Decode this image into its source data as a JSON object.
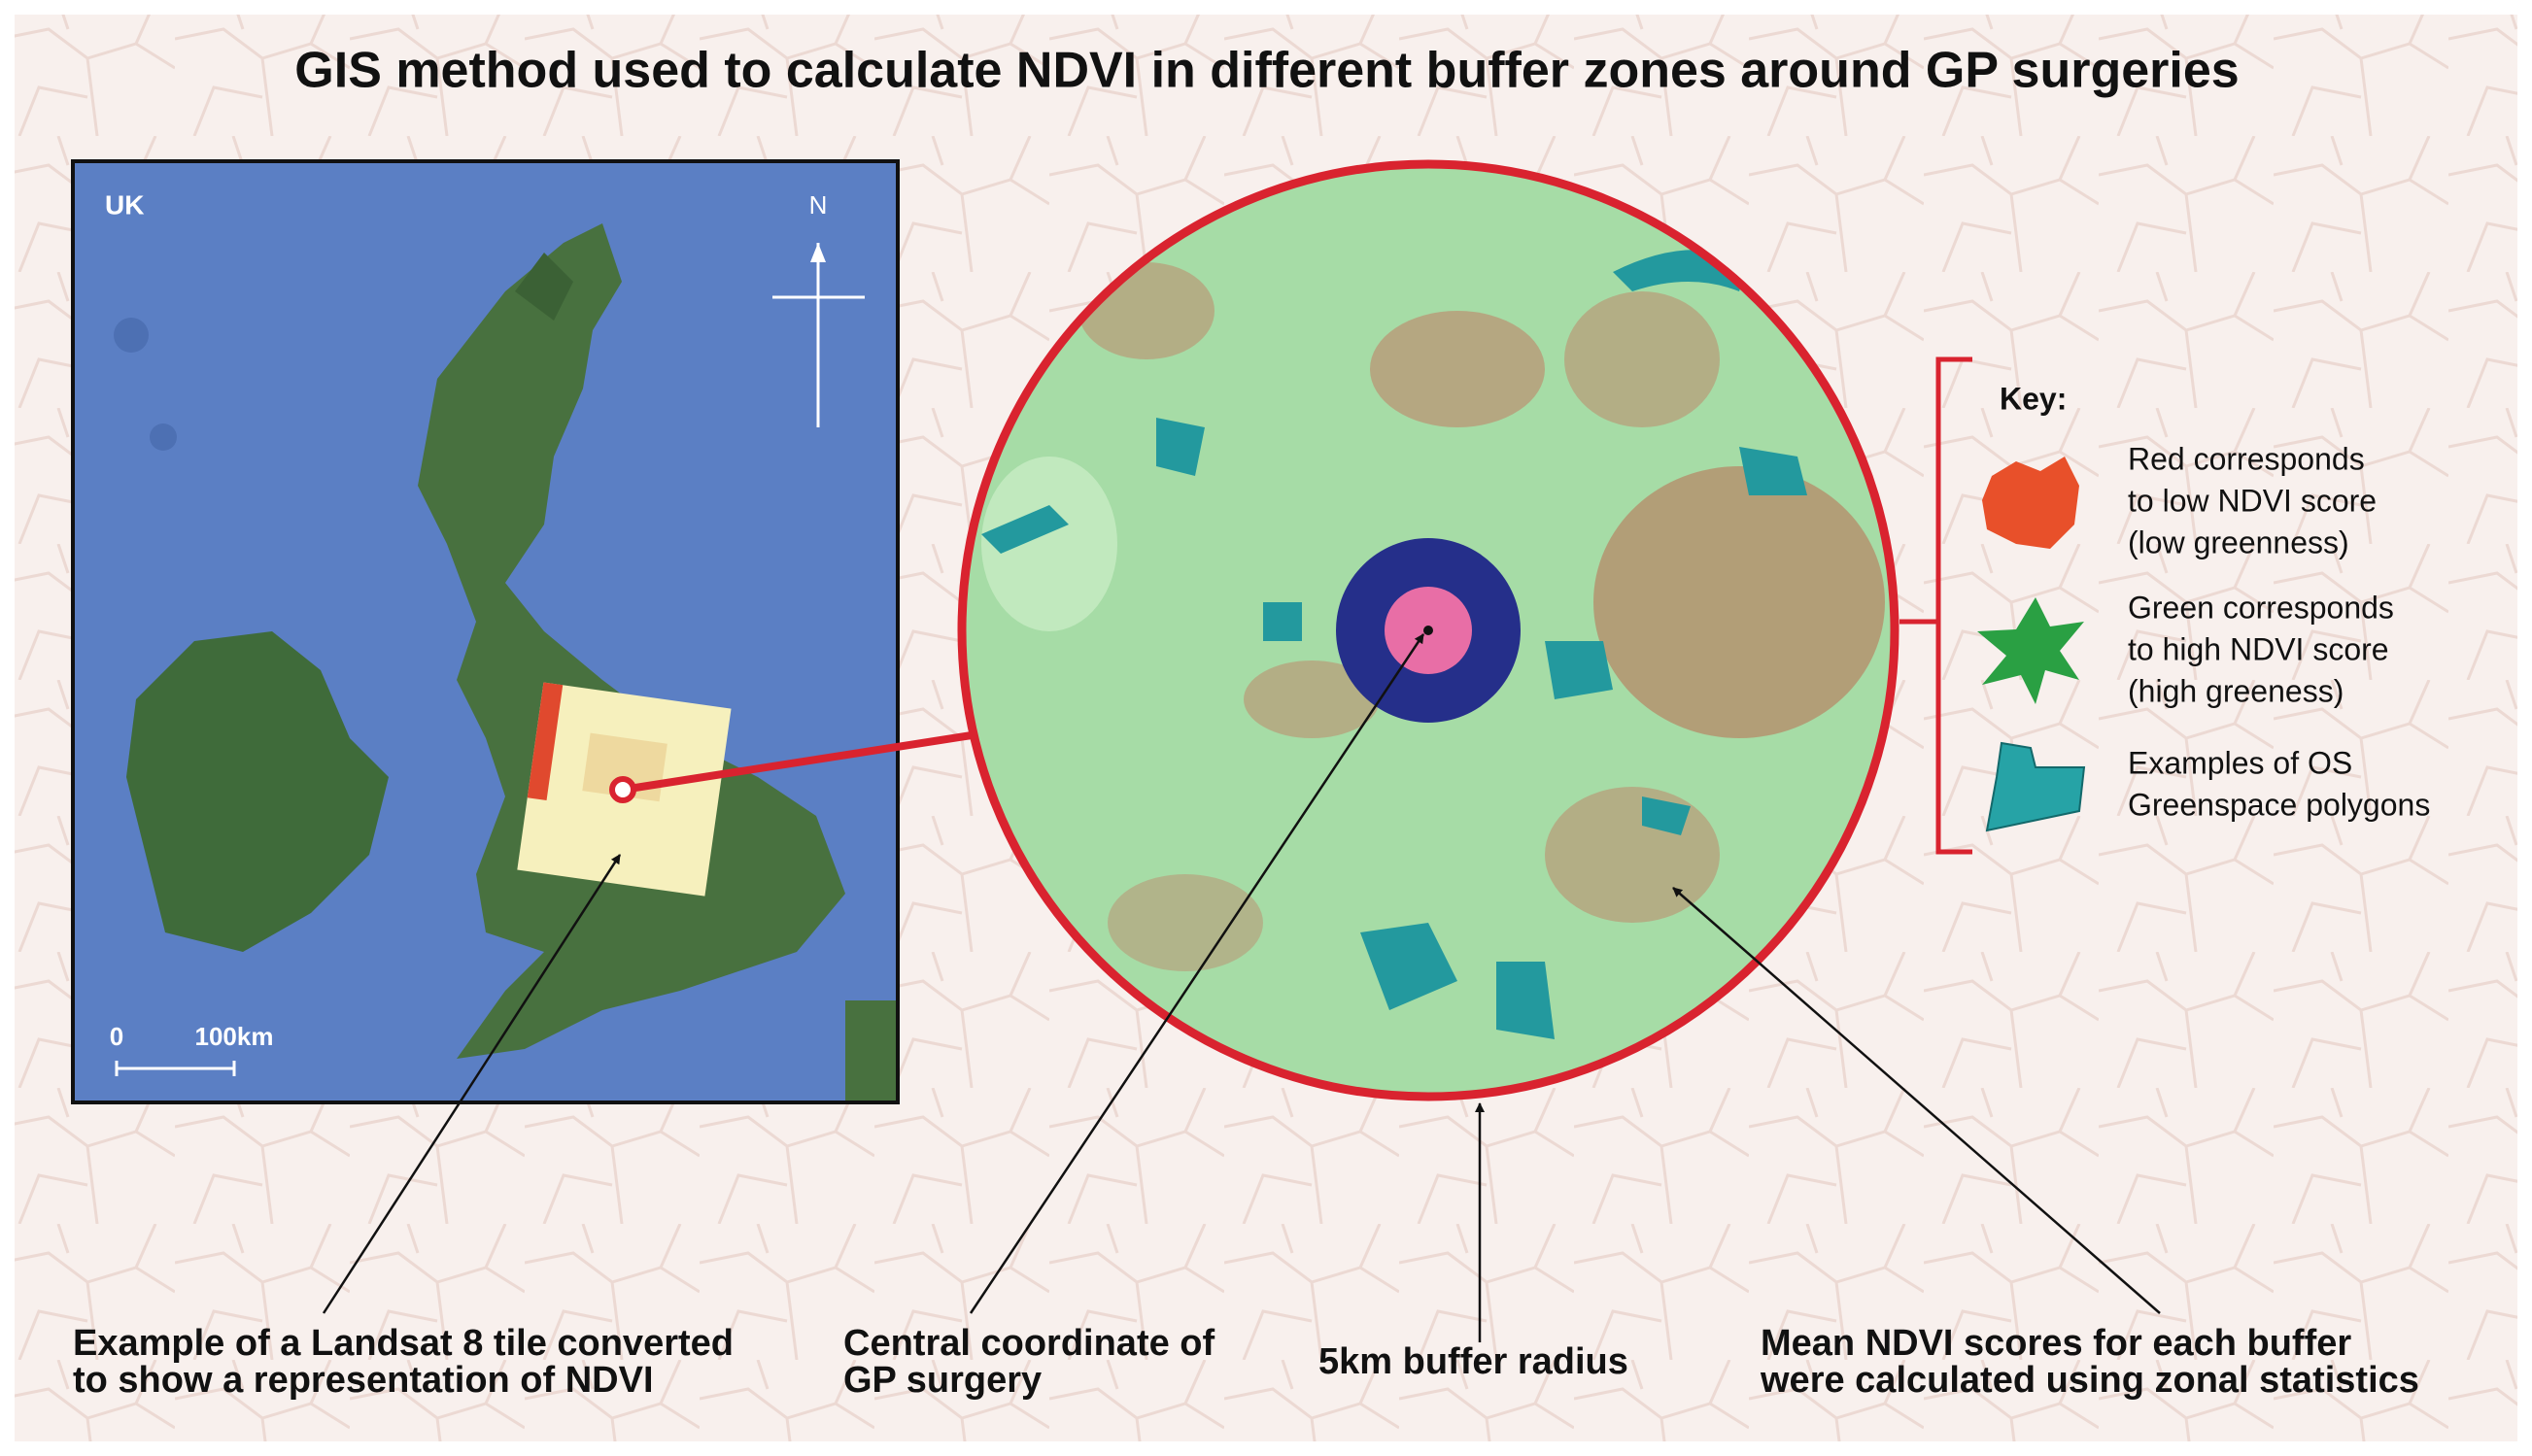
{
  "title": "GIS method used to calculate NDVI in different buffer zones around GP surgeries",
  "map": {
    "region_label": "UK",
    "north_label": "N",
    "scale_start": "0",
    "scale_end": "100km"
  },
  "key": {
    "title": "Key:",
    "items": [
      {
        "lines": [
          "Red corresponds",
          "to low NDVI score",
          "(low greenness)"
        ]
      },
      {
        "lines": [
          "Green corresponds",
          "to high NDVI score",
          "(high greeness)"
        ]
      },
      {
        "lines": [
          "Examples of OS",
          "Greenspace polygons"
        ]
      }
    ]
  },
  "annotations": [
    {
      "lines": [
        "Example of a Landsat 8 tile converted",
        "to show a representation of NDVI"
      ]
    },
    {
      "lines": [
        "Central coordinate of",
        "GP surgery"
      ]
    },
    {
      "lines": [
        "5km buffer radius"
      ]
    },
    {
      "lines": [
        "Mean NDVI scores for each buffer",
        "were calculated using zonal statistics"
      ]
    }
  ]
}
